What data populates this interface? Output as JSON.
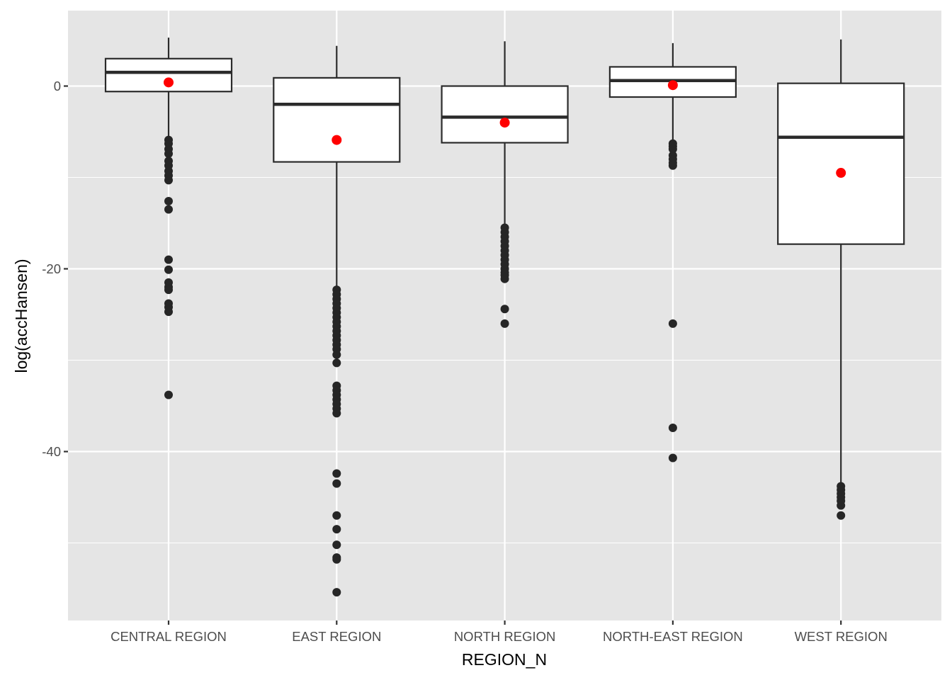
{
  "chart_data": {
    "type": "boxplot",
    "title": "",
    "xlabel": "REGION_N",
    "ylabel": "log(accHansen)",
    "ylim": [
      -58.5,
      8.3
    ],
    "y_major_ticks": [
      0,
      -20,
      -40
    ],
    "y_tick_labels": [
      "0",
      "-20",
      "-40"
    ],
    "y_minor_ticks": [
      -10,
      -30,
      -50
    ],
    "grid": true,
    "legend": "none",
    "categories": [
      "CENTRAL REGION",
      "EAST REGION",
      "NORTH REGION",
      "NORTH-EAST REGION",
      "WEST REGION"
    ],
    "boxes": [
      {
        "name": "CENTRAL REGION",
        "whisker_high": 5.3,
        "q3": 3.0,
        "median": 1.5,
        "q1": -0.6,
        "whisker_low": -5.7,
        "mean": 0.4,
        "outliers": [
          -5.9,
          -6.3,
          -6.9,
          -7.4,
          -8.2,
          -8.7,
          -9.3,
          -9.8,
          -10.3,
          -12.6,
          -13.5,
          -19.0,
          -20.1,
          -21.5,
          -22.0,
          -22.3,
          -23.8,
          -24.2,
          -24.7,
          -33.8
        ]
      },
      {
        "name": "EAST REGION",
        "whisker_high": 4.4,
        "q3": 0.9,
        "median": -2.0,
        "q1": -8.3,
        "whisker_low": -22.0,
        "mean": -5.9,
        "outliers": [
          -22.3,
          -22.8,
          -23.3,
          -23.8,
          -24.3,
          -24.8,
          -25.3,
          -25.8,
          -26.3,
          -26.8,
          -27.3,
          -27.8,
          -28.3,
          -28.8,
          -29.4,
          -30.3,
          -32.8,
          -33.3,
          -33.8,
          -34.3,
          -34.8,
          -35.3,
          -35.8,
          -42.4,
          -43.5,
          -47.0,
          -48.5,
          -50.2,
          -51.6,
          -51.8,
          -55.4
        ]
      },
      {
        "name": "NORTH REGION",
        "whisker_high": 4.9,
        "q3": 0.0,
        "median": -3.4,
        "q1": -6.2,
        "whisker_low": -15.2,
        "mean": -4.0,
        "outliers": [
          -15.5,
          -16.0,
          -16.5,
          -17.0,
          -17.5,
          -18.0,
          -18.5,
          -19.0,
          -19.5,
          -20.0,
          -20.4,
          -20.7,
          -21.1,
          -24.4,
          -26.0
        ]
      },
      {
        "name": "NORTH-EAST REGION",
        "whisker_high": 4.7,
        "q3": 2.1,
        "median": 0.6,
        "q1": -1.2,
        "whisker_low": -5.9,
        "mean": 0.1,
        "outliers": [
          -6.3,
          -6.6,
          -6.9,
          -7.6,
          -8.0,
          -8.4,
          -8.7,
          -26.0,
          -37.4,
          -40.7
        ]
      },
      {
        "name": "WEST REGION",
        "whisker_high": 5.1,
        "q3": 0.3,
        "median": -5.6,
        "q1": -17.3,
        "whisker_low": -43.4,
        "mean": -9.5,
        "outliers": [
          -43.8,
          -44.2,
          -44.6,
          -45.0,
          -45.4,
          -45.9,
          -47.0
        ]
      }
    ],
    "colors": {
      "panel_bg": "#e5e5e5",
      "grid": "#ffffff",
      "box_fill": "#ffffff",
      "box_line": "#2b2b2b",
      "outlier": "#262626",
      "mean_point": "#ff0000",
      "tick_text": "#4d4d4d",
      "axis_title": "#000000"
    }
  }
}
